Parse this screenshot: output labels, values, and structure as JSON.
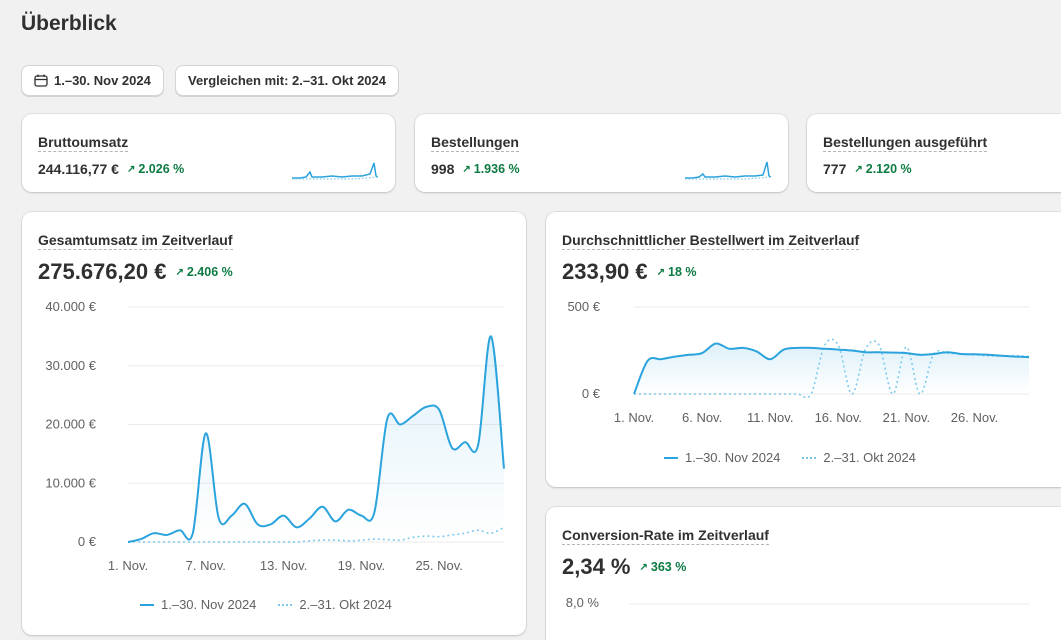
{
  "page": {
    "title": "Überblick"
  },
  "filters": {
    "date_range": "1.–30. Nov 2024",
    "compare": "Vergleichen mit: 2.–31. Okt 2024"
  },
  "kpis": [
    {
      "title": "Bruttoumsatz",
      "value": "244.116,77 €",
      "delta": "2.026 %"
    },
    {
      "title": "Bestellungen",
      "value": "998",
      "delta": "1.936 %"
    },
    {
      "title": "Bestellungen ausgeführt",
      "value": "777",
      "delta": "2.120 %"
    }
  ],
  "colors": {
    "primary": "#2ba3dd",
    "comparison": "#7fcaec",
    "positive": "#0c7a43"
  },
  "legend": {
    "current": "1.–30. Nov 2024",
    "previous": "2.–31. Okt 2024"
  },
  "sales_card": {
    "title": "Gesamtumsatz im Zeitverlauf",
    "value": "275.676,20 €",
    "delta": "2.406 %",
    "yticks": [
      "40.000 €",
      "30.000 €",
      "20.000 €",
      "10.000 €",
      "0 €"
    ],
    "xticks": [
      "1. Nov.",
      "7. Nov.",
      "13. Nov.",
      "19. Nov.",
      "25. Nov."
    ]
  },
  "aov_card": {
    "title": "Durchschnittlicher Bestellwert im Zeitverlauf",
    "value": "233,90 €",
    "delta": "18 %",
    "yticks": [
      "500 €",
      "0 €"
    ],
    "xticks": [
      "1. Nov.",
      "6. Nov.",
      "11. Nov.",
      "16. Nov.",
      "21. Nov.",
      "26. Nov."
    ]
  },
  "conv_card": {
    "title": "Conversion-Rate im Zeitverlauf",
    "value": "2,34 %",
    "delta": "363 %",
    "yticks": [
      "8,0 %"
    ]
  },
  "chart_data": [
    {
      "type": "line",
      "title": "Gesamtumsatz im Zeitverlauf",
      "ylim": [
        0,
        40000
      ],
      "x": [
        "1. Nov.",
        "2. Nov.",
        "3. Nov.",
        "4. Nov.",
        "5. Nov.",
        "6. Nov.",
        "7. Nov.",
        "8. Nov.",
        "9. Nov.",
        "10. Nov.",
        "11. Nov.",
        "12. Nov.",
        "13. Nov.",
        "14. Nov.",
        "15. Nov.",
        "16. Nov.",
        "17. Nov.",
        "18. Nov.",
        "19. Nov.",
        "20. Nov.",
        "21. Nov.",
        "22. Nov.",
        "23. Nov.",
        "24. Nov.",
        "25. Nov.",
        "26. Nov.",
        "27. Nov.",
        "28. Nov.",
        "29. Nov.",
        "30. Nov."
      ],
      "series": [
        {
          "name": "1.–30. Nov 2024",
          "values": [
            0,
            500,
            1500,
            1200,
            2000,
            1500,
            18500,
            4000,
            4500,
            6500,
            3000,
            3000,
            4500,
            2500,
            4000,
            6000,
            3500,
            5500,
            4500,
            5000,
            21000,
            20000,
            21500,
            23000,
            22500,
            16000,
            17000,
            16500,
            35000,
            12500
          ]
        },
        {
          "name": "2.–31. Okt 2024",
          "values": [
            0,
            0,
            0,
            0,
            0,
            0,
            0,
            0,
            0,
            0,
            0,
            0,
            0,
            0,
            200,
            300,
            300,
            200,
            300,
            500,
            400,
            300,
            800,
            1000,
            900,
            1200,
            1500,
            2000,
            1500,
            2500
          ]
        }
      ]
    },
    {
      "type": "line",
      "title": "Durchschnittlicher Bestellwert im Zeitverlauf",
      "ylim": [
        0,
        500
      ],
      "x": [
        "1. Nov.",
        "2. Nov.",
        "3. Nov.",
        "4. Nov.",
        "5. Nov.",
        "6. Nov.",
        "7. Nov.",
        "8. Nov.",
        "9. Nov.",
        "10. Nov.",
        "11. Nov.",
        "12. Nov.",
        "13. Nov.",
        "14. Nov.",
        "15. Nov.",
        "16. Nov.",
        "17. Nov.",
        "18. Nov.",
        "19. Nov.",
        "20. Nov.",
        "21. Nov.",
        "22. Nov.",
        "23. Nov.",
        "24. Nov.",
        "25. Nov.",
        "26. Nov.",
        "27. Nov.",
        "28. Nov.",
        "29. Nov.",
        "30. Nov."
      ],
      "series": [
        {
          "name": "1.–30. Nov 2024",
          "values": [
            0,
            190,
            200,
            215,
            225,
            235,
            290,
            260,
            265,
            245,
            200,
            255,
            265,
            265,
            260,
            255,
            250,
            240,
            240,
            238,
            235,
            225,
            230,
            240,
            230,
            228,
            225,
            220,
            215,
            212
          ]
        },
        {
          "name": "2.–31. Okt 2024",
          "values": [
            0,
            0,
            0,
            0,
            0,
            0,
            0,
            0,
            0,
            0,
            0,
            0,
            0,
            0,
            280,
            280,
            0,
            260,
            280,
            0,
            270,
            0,
            230,
            235,
            230,
            225,
            220,
            218,
            220,
            215
          ]
        }
      ]
    }
  ]
}
